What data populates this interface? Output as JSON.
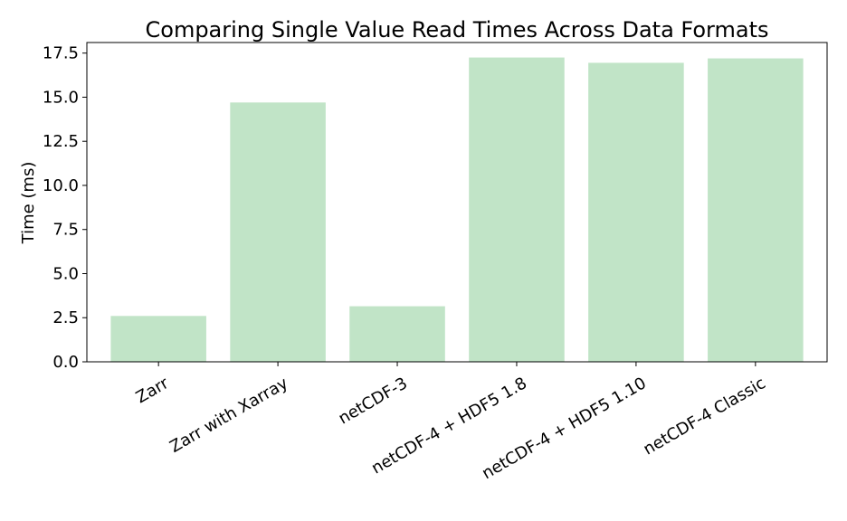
{
  "chart_data": {
    "type": "bar",
    "title": "Comparing Single Value Read Times Across Data Formats",
    "xlabel": "",
    "ylabel": "Time (ms)",
    "categories": [
      "Zarr",
      "Zarr with Xarray",
      "netCDF-3",
      "netCDF-4 + HDF5 1.8",
      "netCDF-4 + HDF5 1.10",
      "netCDF-4 Classic"
    ],
    "values": [
      2.6,
      14.7,
      3.15,
      17.25,
      16.95,
      17.2
    ],
    "ylim": [
      0,
      18.1
    ],
    "yticks": [
      0.0,
      2.5,
      5.0,
      7.5,
      10.0,
      12.5,
      15.0,
      17.5
    ],
    "ytick_labels": [
      "0.0",
      "2.5",
      "5.0",
      "7.5",
      "10.0",
      "12.5",
      "15.0",
      "17.5"
    ],
    "bar_color": "#c1e4c7",
    "grid": false,
    "legend": "none"
  }
}
